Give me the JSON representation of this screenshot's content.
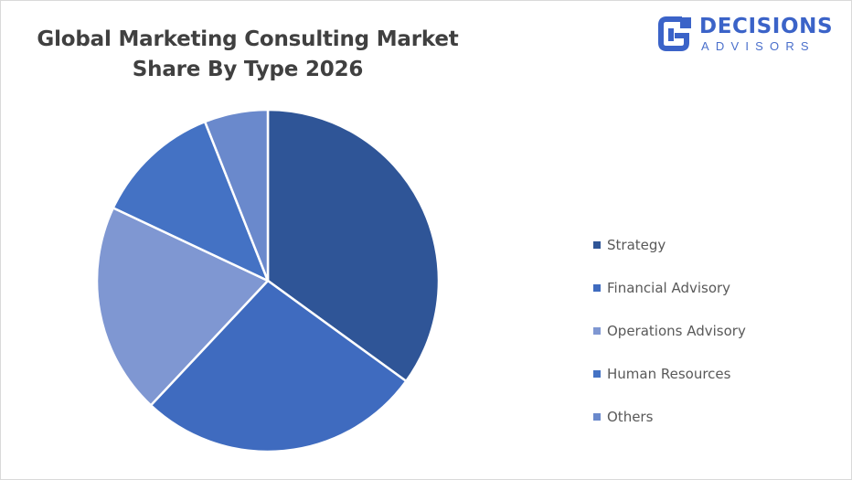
{
  "title_lines": [
    "Global Marketing Consulting Market",
    "Share By Type 2026"
  ],
  "logo": {
    "main": "DECISIONS",
    "sub": "ADVISORS",
    "color": "#3b63c8"
  },
  "chart_data": {
    "type": "pie",
    "title": "Global Marketing Consulting Market Share By Type 2026",
    "categories": [
      "Strategy",
      "Financial Advisory",
      "Operations Advisory",
      "Human Resources",
      "Others"
    ],
    "values": [
      35,
      27,
      20,
      12,
      6
    ],
    "colors": [
      "#2f5597",
      "#3f6bbf",
      "#7f97d2",
      "#4472c4",
      "#6a89cc"
    ],
    "start_angle_deg": 0,
    "direction": "clockwise",
    "legend_position": "right"
  },
  "legend": {
    "items": [
      {
        "label": "Strategy"
      },
      {
        "label": "Financial Advisory"
      },
      {
        "label": "Operations Advisory"
      },
      {
        "label": "Human Resources"
      },
      {
        "label": "Others"
      }
    ]
  }
}
